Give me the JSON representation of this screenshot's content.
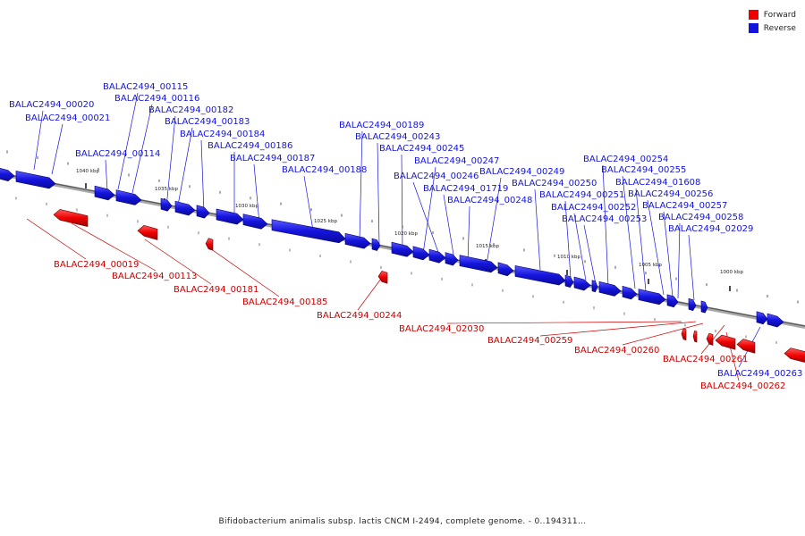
{
  "colors": {
    "forward": "#ee0000",
    "reverse": "#1414dd"
  },
  "legend": [
    {
      "label": "Forward",
      "color": "#ee0000"
    },
    {
      "label": "Reverse",
      "color": "#1414dd"
    }
  ],
  "caption": "Bifidobacterium animalis subsp. lactis CNCM I-2494, complete genome. - 0..194311...",
  "scale_labels": [
    "1040 kbp",
    "1035 kbp",
    "1030 kbp",
    "1025 kbp",
    "1020 kbp",
    "1015 kbp",
    "1010 kbp",
    "1005 kbp",
    "1000 kbp"
  ],
  "reverse_labels": [
    "BALAC2494_00020",
    "BALAC2494_00021",
    "BALAC2494_00115",
    "BALAC2494_00116",
    "BALAC2494_00114",
    "BALAC2494_00182",
    "BALAC2494_00183",
    "BALAC2494_00184",
    "BALAC2494_00186",
    "BALAC2494_00187",
    "BALAC2494_00188",
    "BALAC2494_00189",
    "BALAC2494_00243",
    "BALAC2494_00245",
    "BALAC2494_00247",
    "BALAC2494_00246",
    "BALAC2494_01719",
    "BALAC2494_00248",
    "BALAC2494_00249",
    "BALAC2494_00250",
    "BALAC2494_00251",
    "BALAC2494_00252",
    "BALAC2494_00253",
    "BALAC2494_00254",
    "BALAC2494_00255",
    "BALAC2494_01608",
    "BALAC2494_00256",
    "BALAC2494_00257",
    "BALAC2494_00258",
    "BALAC2494_02029",
    "BALAC2494_00263"
  ],
  "forward_labels": [
    "BALAC2494_00019",
    "BALAC2494_00113",
    "BALAC2494_00181",
    "BALAC2494_00185",
    "BALAC2494_00244",
    "BALAC2494_02030",
    "BALAC2494_00259",
    "BALAC2494_00260",
    "BALAC2494_00261",
    "BALAC2494_00262"
  ]
}
